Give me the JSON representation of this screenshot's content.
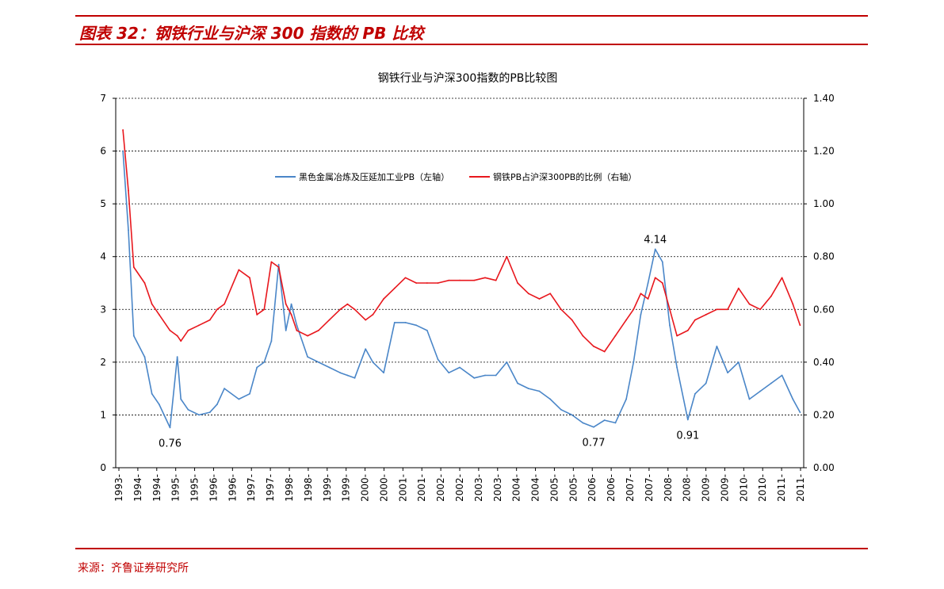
{
  "header": {
    "figure_title": "图表 32：钢铁行业与沪深 300 指数的 PB 比较"
  },
  "footer": {
    "source": "来源：齐鲁证券研究所"
  },
  "colors": {
    "accent": "#c00000",
    "series_left": "#4a86c8",
    "series_right": "#e8171d"
  },
  "chart_data": {
    "type": "line",
    "title": "钢铁行业与沪深300指数的PB比较图",
    "xlabel": "",
    "ylabel": "",
    "grid": true,
    "legend_position": "top-center",
    "x_ticks": [
      "1993-",
      "1994-",
      "1994-",
      "1995-",
      "1995-",
      "1996-",
      "1996-",
      "1997-",
      "1997-",
      "1998-",
      "1998-",
      "1999-",
      "1999-",
      "2000-",
      "2000-",
      "2001-",
      "2001-",
      "2002-",
      "2002-",
      "2003-",
      "2003-",
      "2004-",
      "2004-",
      "2005-",
      "2005-",
      "2006-",
      "2006-",
      "2007-",
      "2007-",
      "2008-",
      "2008-",
      "2009-",
      "2009-",
      "2010-",
      "2010-",
      "2011-",
      "2011-"
    ],
    "y_left": {
      "ylim": [
        0,
        7
      ],
      "ticks": [
        "0",
        "1",
        "2",
        "3",
        "4",
        "5",
        "6",
        "7"
      ]
    },
    "y_right": {
      "ylim": [
        0,
        1.4
      ],
      "ticks": [
        "0.00",
        "0.20",
        "0.40",
        "0.60",
        "0.80",
        "1.00",
        "1.20",
        "1.40"
      ]
    },
    "series": [
      {
        "name": "黑色金属冶炼及压延加工业PB（左轴）",
        "axis": "left",
        "x": [
          1993.2,
          1993.35,
          1993.5,
          1993.8,
          1994.0,
          1994.2,
          1994.5,
          1994.7,
          1994.8,
          1995.0,
          1995.3,
          1995.6,
          1995.8,
          1996.0,
          1996.4,
          1996.7,
          1996.9,
          1997.1,
          1997.3,
          1997.5,
          1997.7,
          1997.85,
          1998.0,
          1998.3,
          1998.6,
          1998.9,
          1999.2,
          1999.4,
          1999.6,
          1999.9,
          2000.1,
          2000.4,
          2000.7,
          2001.0,
          2001.3,
          2001.6,
          2001.9,
          2002.2,
          2002.5,
          2002.9,
          2003.2,
          2003.5,
          2003.8,
          2004.1,
          2004.4,
          2004.7,
          2005.0,
          2005.3,
          2005.6,
          2005.9,
          2006.2,
          2006.5,
          2006.8,
          2007.1,
          2007.3,
          2007.5,
          2007.7,
          2007.9,
          2008.1,
          2008.3,
          2008.5,
          2008.8,
          2009.0,
          2009.3,
          2009.6,
          2009.9,
          2010.2,
          2010.5,
          2010.8,
          2011.1,
          2011.4,
          2011.7,
          2011.9
        ],
        "y": [
          6.0,
          4.5,
          2.5,
          2.1,
          1.4,
          1.2,
          0.76,
          2.1,
          1.3,
          1.1,
          1.0,
          1.05,
          1.2,
          1.5,
          1.3,
          1.4,
          1.9,
          2.0,
          2.4,
          3.85,
          2.6,
          3.1,
          2.7,
          2.1,
          2.0,
          1.9,
          1.8,
          1.75,
          1.7,
          2.25,
          2.0,
          1.8,
          2.75,
          2.75,
          2.7,
          2.6,
          2.05,
          1.8,
          1.9,
          1.7,
          1.75,
          1.75,
          2.0,
          1.6,
          1.5,
          1.45,
          1.3,
          1.1,
          1.0,
          0.85,
          0.77,
          0.9,
          0.85,
          1.3,
          2.0,
          2.9,
          3.5,
          4.14,
          3.9,
          2.7,
          1.9,
          0.91,
          1.4,
          1.6,
          2.3,
          1.8,
          2.0,
          1.3,
          1.45,
          1.6,
          1.75,
          1.3,
          1.05
        ]
      },
      {
        "name": "钢铁PB占沪深300PB的比例（右轴）",
        "axis": "right",
        "x": [
          1993.2,
          1993.35,
          1993.5,
          1993.8,
          1994.0,
          1994.2,
          1994.5,
          1994.7,
          1994.8,
          1995.0,
          1995.3,
          1995.6,
          1995.8,
          1996.0,
          1996.4,
          1996.7,
          1996.9,
          1997.1,
          1997.3,
          1997.5,
          1997.7,
          1997.85,
          1998.0,
          1998.3,
          1998.6,
          1998.9,
          1999.2,
          1999.4,
          1999.6,
          1999.9,
          2000.1,
          2000.4,
          2000.7,
          2001.0,
          2001.3,
          2001.6,
          2001.9,
          2002.2,
          2002.5,
          2002.9,
          2003.2,
          2003.5,
          2003.8,
          2004.1,
          2004.4,
          2004.7,
          2005.0,
          2005.3,
          2005.6,
          2005.9,
          2006.2,
          2006.5,
          2006.8,
          2007.1,
          2007.3,
          2007.5,
          2007.7,
          2007.9,
          2008.1,
          2008.3,
          2008.5,
          2008.8,
          2009.0,
          2009.3,
          2009.6,
          2009.9,
          2010.2,
          2010.5,
          2010.8,
          2011.1,
          2011.4,
          2011.7,
          2011.9
        ],
        "y": [
          1.28,
          1.05,
          0.76,
          0.7,
          0.62,
          0.58,
          0.52,
          0.5,
          0.48,
          0.52,
          0.54,
          0.56,
          0.6,
          0.62,
          0.75,
          0.72,
          0.58,
          0.6,
          0.78,
          0.76,
          0.62,
          0.58,
          0.52,
          0.5,
          0.52,
          0.56,
          0.6,
          0.62,
          0.6,
          0.56,
          0.58,
          0.64,
          0.68,
          0.72,
          0.7,
          0.7,
          0.7,
          0.71,
          0.71,
          0.71,
          0.72,
          0.71,
          0.8,
          0.7,
          0.66,
          0.64,
          0.66,
          0.6,
          0.56,
          0.5,
          0.46,
          0.44,
          0.5,
          0.56,
          0.6,
          0.66,
          0.64,
          0.72,
          0.7,
          0.6,
          0.5,
          0.52,
          0.56,
          0.58,
          0.6,
          0.6,
          0.68,
          0.62,
          0.6,
          0.65,
          0.72,
          0.62,
          0.54
        ]
      }
    ],
    "annotations": [
      {
        "text": "0.76",
        "x": 1994.5,
        "y": 0.76,
        "axis": "left"
      },
      {
        "text": "0.77",
        "x": 2006.2,
        "y": 0.77,
        "axis": "left"
      },
      {
        "text": "4.14",
        "x": 2007.9,
        "y": 4.14,
        "axis": "left"
      },
      {
        "text": "0.91",
        "x": 2008.8,
        "y": 0.91,
        "axis": "left"
      }
    ]
  }
}
